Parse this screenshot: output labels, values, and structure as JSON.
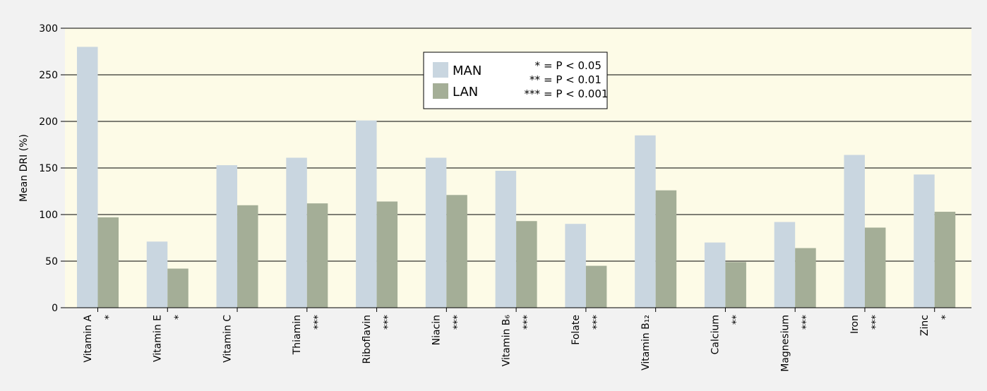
{
  "chart_data": {
    "type": "bar",
    "y_label": "Mean DRI (%)",
    "categories": [
      "Vitamin A",
      "Vitamin E",
      "Vitamin C",
      "Thiamin",
      "Riboflavin",
      "Niacin",
      "Vitamin B₆",
      "Folate",
      "Vitamin B₁₂",
      "Calcium",
      "Magnesium",
      "Iron",
      "Zinc"
    ],
    "significance": [
      "*",
      "*",
      null,
      "***",
      "***",
      "***",
      "***",
      "***",
      null,
      "**",
      "***",
      "***",
      "*"
    ],
    "series": [
      {
        "name": "MAN",
        "color": "#c9d6e0",
        "values": [
          280,
          71,
          153,
          161,
          201,
          161,
          147,
          90,
          185,
          70,
          92,
          164,
          143
        ]
      },
      {
        "name": "LAN",
        "color": "#a4ae97",
        "values": [
          97,
          42,
          110,
          112,
          114,
          121,
          93,
          45,
          126,
          49,
          64,
          86,
          103
        ]
      }
    ],
    "legend_notes": [
      {
        "symbol": "*",
        "label": "= P < 0.05"
      },
      {
        "symbol": "**",
        "label": "= P < 0.01"
      },
      {
        "symbol": "***",
        "label": "= P < 0.001"
      }
    ],
    "ylim": [
      0,
      300
    ],
    "yticks": [
      0,
      50,
      100,
      150,
      200,
      250,
      300
    ],
    "grid": true
  }
}
